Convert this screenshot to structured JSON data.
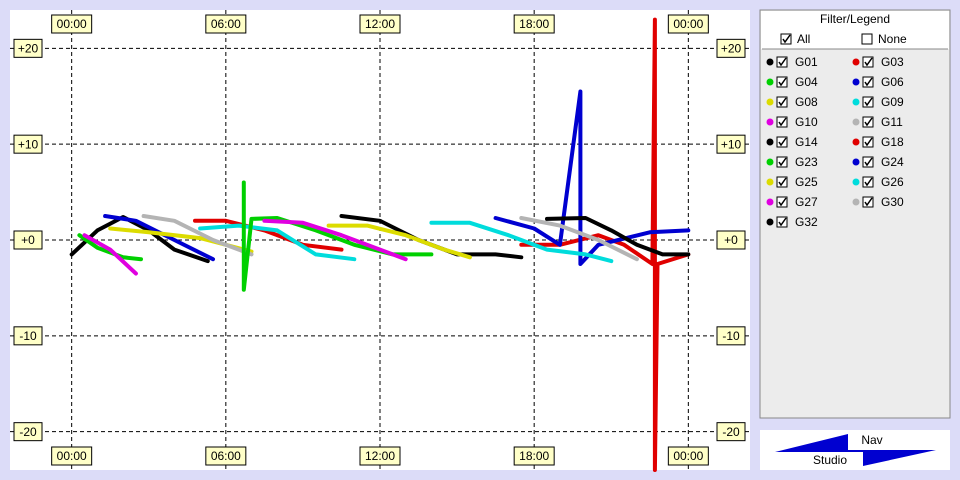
{
  "chart_data": {
    "type": "line",
    "xlim": [
      -2.4,
      26.4
    ],
    "ylim": [
      -24,
      24
    ],
    "xticks": [
      {
        "value": 0,
        "label": "00:00"
      },
      {
        "value": 6,
        "label": "06:00"
      },
      {
        "value": 12,
        "label": "12:00"
      },
      {
        "value": 18,
        "label": "18:00"
      },
      {
        "value": 24,
        "label": "00:00"
      }
    ],
    "yticks": [
      {
        "value": 20,
        "label": "+20"
      },
      {
        "value": 10,
        "label": "+10"
      },
      {
        "value": 0,
        "label": "+0"
      },
      -10,
      -20
    ],
    "grid": true,
    "legend_title": "Filter/Legend",
    "filter_all": "All",
    "filter_none": "None",
    "series": [
      {
        "name": "G01",
        "color": "#000000",
        "x": [
          0,
          1,
          2,
          3,
          4,
          5.3
        ],
        "values": [
          -1.5,
          1,
          2.4,
          1,
          -1,
          -2.2
        ]
      },
      {
        "name": "G03",
        "color": "#e00000",
        "x": [
          4.8,
          6,
          7.5,
          9,
          10.5
        ],
        "values": [
          2,
          2,
          1,
          -0.5,
          -1
        ]
      },
      {
        "name": "G04",
        "color": "#00d000",
        "x": [
          0.3,
          1,
          2,
          2.7
        ],
        "values": [
          0.5,
          -0.8,
          -1.8,
          -2
        ]
      },
      {
        "name": "G06",
        "color": "#0000d0",
        "x": [
          1.3,
          2.5,
          4,
          5.5
        ],
        "values": [
          2.5,
          2,
          0,
          -2
        ]
      },
      {
        "name": "G08",
        "color": "#dcdc00",
        "x": [
          1.5,
          3,
          5,
          7
        ],
        "values": [
          1.2,
          0.8,
          0.2,
          -1.2
        ]
      },
      {
        "name": "G09",
        "color": "#00dcdc",
        "x": [
          5,
          6.5,
          8,
          9.5,
          11
        ],
        "values": [
          1.2,
          1.5,
          1,
          -1.5,
          -2
        ]
      },
      {
        "name": "G10",
        "color": "#e000e0",
        "x": [
          0.5,
          1.5,
          2.5
        ],
        "values": [
          0.5,
          -1,
          -3.5
        ]
      },
      {
        "name": "G11",
        "color": "#b4b4b4",
        "x": [
          2.8,
          4,
          5.5,
          7
        ],
        "values": [
          2.5,
          2,
          0,
          -1.5
        ]
      },
      {
        "name": "G14",
        "color": "#000000",
        "x": [
          10.5,
          12,
          13.5,
          15,
          16.5,
          17.5
        ],
        "values": [
          2.5,
          2,
          0,
          -1.5,
          -1.5,
          -1.8
        ]
      },
      {
        "name": "G18",
        "color": "#e00000",
        "x": [
          17.5,
          19,
          20.5,
          21.5,
          22.6,
          22.7,
          22.7,
          22.8,
          24
        ],
        "values": [
          -0.5,
          -0.5,
          0.5,
          -0.5,
          -2.5,
          23,
          -24,
          -2.5,
          -1.5
        ]
      },
      {
        "name": "G23",
        "color": "#00d000",
        "x": [
          6.7,
          6.7,
          7,
          8,
          9.5,
          11,
          12.5,
          14
        ],
        "values": [
          6,
          -5.2,
          2.2,
          2.3,
          1,
          -0.5,
          -1.5,
          -1.5
        ]
      },
      {
        "name": "G24",
        "color": "#0000d0",
        "x": [
          16.5,
          18,
          19,
          19.8,
          19.8,
          20.5,
          22.5,
          24
        ],
        "values": [
          2.3,
          1.2,
          -0.5,
          15.5,
          -2.5,
          -0.5,
          0.8,
          1
        ]
      },
      {
        "name": "G25",
        "color": "#dcdc00",
        "x": [
          10,
          11.5,
          13,
          14.5,
          15.5
        ],
        "values": [
          1.5,
          1.5,
          0.5,
          -1,
          -1.8
        ]
      },
      {
        "name": "G26",
        "color": "#00dcdc",
        "x": [
          14,
          15.5,
          17,
          18.5,
          20,
          21
        ],
        "values": [
          1.8,
          1.8,
          0.5,
          -1,
          -1.5,
          -2.2
        ]
      },
      {
        "name": "G27",
        "color": "#e000e0",
        "x": [
          7.5,
          9,
          10.5,
          12,
          13
        ],
        "values": [
          2,
          1.8,
          0.5,
          -1,
          -2
        ]
      },
      {
        "name": "G30",
        "color": "#b4b4b4",
        "x": [
          17.5,
          19,
          20.5,
          22
        ],
        "values": [
          2.3,
          1.5,
          0,
          -2
        ]
      },
      {
        "name": "G32",
        "color": "#000000",
        "x": [
          18.5,
          20,
          21,
          22,
          23,
          24
        ],
        "values": [
          2.2,
          2.3,
          1,
          -0.5,
          -1.5,
          -1.5
        ]
      }
    ]
  },
  "logo": {
    "top": "Nav",
    "bottom": "Studio"
  }
}
